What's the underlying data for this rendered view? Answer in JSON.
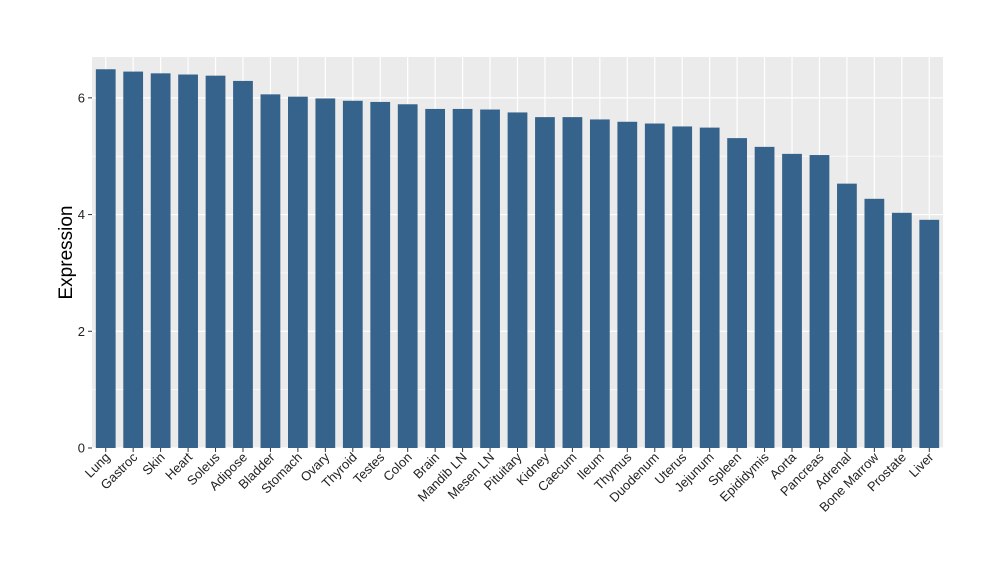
{
  "chart_data": {
    "type": "bar",
    "title": "",
    "xlabel": "",
    "ylabel": "Expression",
    "ylim": [
      0,
      6.7
    ],
    "yticks": [
      0,
      2,
      4,
      6
    ],
    "grid": true,
    "bar_color": "#36638c",
    "panel_color": "#ebebeb",
    "gridline_color": "#ffffff",
    "categories": [
      "Lung",
      "Gastroc",
      "Skin",
      "Heart",
      "Soleus",
      "Adipose",
      "Bladder",
      "Stomach",
      "Ovary",
      "Thyroid",
      "Testes",
      "Colon",
      "Brain",
      "Mandib LN",
      "Mesen LN",
      "Pituitary",
      "Kidney",
      "Caecum",
      "Ileum",
      "Thymus",
      "Duodenum",
      "Uterus",
      "Jejunum",
      "Spleen",
      "Epididymis",
      "Aorta",
      "Pancreas",
      "Adrenal",
      "Bone Marrow",
      "Prostate",
      "Liver"
    ],
    "values": [
      6.49,
      6.45,
      6.42,
      6.4,
      6.38,
      6.29,
      6.06,
      6.02,
      5.99,
      5.95,
      5.93,
      5.89,
      5.81,
      5.81,
      5.8,
      5.75,
      5.67,
      5.67,
      5.63,
      5.59,
      5.56,
      5.51,
      5.49,
      5.31,
      5.16,
      5.04,
      5.02,
      4.53,
      4.27,
      4.03,
      3.91
    ]
  }
}
